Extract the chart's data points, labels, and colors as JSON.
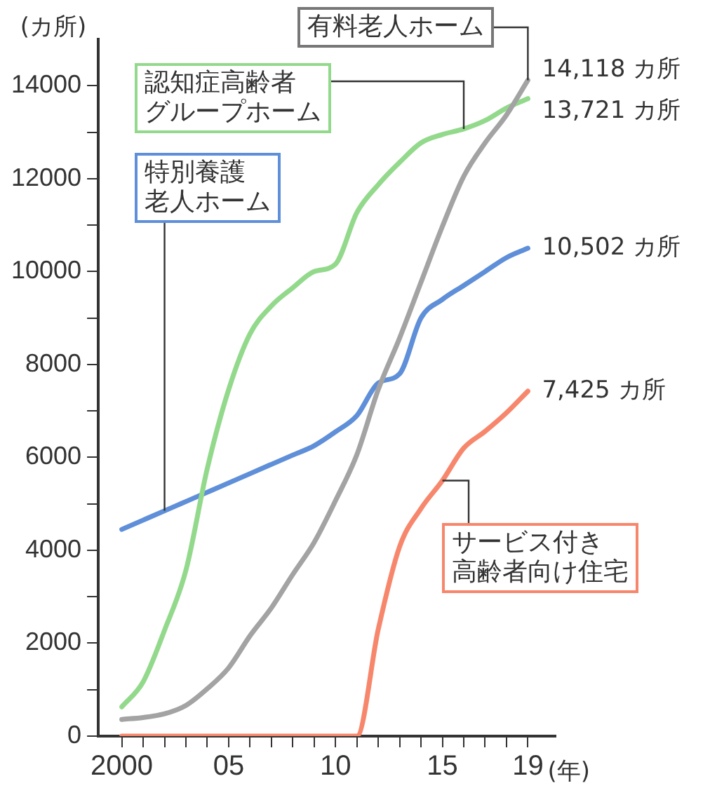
{
  "chart_data": {
    "type": "line",
    "ylabel": "(カ所)",
    "xlabel": "(年)",
    "x": [
      2000,
      2001,
      2002,
      2003,
      2004,
      2005,
      2006,
      2007,
      2008,
      2009,
      2010,
      2011,
      2012,
      2013,
      2014,
      2015,
      2016,
      2017,
      2018,
      2019
    ],
    "xlim": [
      1998.9,
      2020.3
    ],
    "xticks": [
      {
        "value": 2000,
        "label": "2000"
      },
      {
        "value": 2001,
        "label": null
      },
      {
        "value": 2002,
        "label": null
      },
      {
        "value": 2003,
        "label": null
      },
      {
        "value": 2004,
        "label": null
      },
      {
        "value": 2005,
        "label": "05"
      },
      {
        "value": 2006,
        "label": null
      },
      {
        "value": 2007,
        "label": null
      },
      {
        "value": 2008,
        "label": null
      },
      {
        "value": 2009,
        "label": null
      },
      {
        "value": 2010,
        "label": "10"
      },
      {
        "value": 2011,
        "label": null
      },
      {
        "value": 2012,
        "label": null
      },
      {
        "value": 2013,
        "label": null
      },
      {
        "value": 2014,
        "label": null
      },
      {
        "value": 2015,
        "label": "15"
      },
      {
        "value": 2016,
        "label": null
      },
      {
        "value": 2017,
        "label": null
      },
      {
        "value": 2018,
        "label": null
      },
      {
        "value": 2019,
        "label": "19"
      }
    ],
    "ylim": [
      0,
      15000
    ],
    "yticks": [
      0,
      {
        "value": 1000,
        "label": null
      },
      2000,
      {
        "value": 3000,
        "label": null
      },
      4000,
      {
        "value": 5000,
        "label": null
      },
      6000,
      {
        "value": 7000,
        "label": null
      },
      8000,
      {
        "value": 9000,
        "label": null
      },
      10000,
      {
        "value": 11000,
        "label": null
      },
      12000,
      {
        "value": 13000,
        "label": null
      },
      14000
    ],
    "grid": false,
    "legend": false,
    "marker": "none",
    "line_style": "solid",
    "series": [
      {
        "name": "有料老人ホーム",
        "color": "#a3a3a3",
        "values": [
          360,
          400,
          480,
          660,
          1020,
          1470,
          2160,
          2760,
          3480,
          4170,
          5070,
          6060,
          7460,
          8570,
          9770,
          10970,
          12050,
          12770,
          13370,
          14118
        ],
        "value_labels": [
          null,
          null,
          null,
          null,
          null,
          null,
          null,
          null,
          null,
          null,
          null,
          null,
          null,
          null,
          null,
          null,
          null,
          null,
          null,
          "14,118 カ所"
        ]
      },
      {
        "name": "認知症高齢者グループホーム",
        "color": "#93d98c",
        "values": [
          630,
          1170,
          2280,
          3570,
          5760,
          7460,
          8660,
          9260,
          9650,
          10000,
          10160,
          11270,
          11870,
          12350,
          12770,
          12950,
          13070,
          13250,
          13520,
          13721
        ],
        "value_labels": [
          null,
          null,
          null,
          null,
          null,
          null,
          null,
          null,
          null,
          null,
          null,
          null,
          null,
          null,
          null,
          null,
          null,
          null,
          null,
          "13,721 カ所"
        ]
      },
      {
        "name": "特別養護老人ホーム",
        "color": "#5f8fd8",
        "values": [
          4450,
          4650,
          4850,
          5050,
          5250,
          5450,
          5650,
          5850,
          6050,
          6250,
          6550,
          6900,
          7600,
          7800,
          9000,
          9400,
          9700,
          10000,
          10300,
          10502
        ],
        "value_labels": [
          null,
          null,
          null,
          null,
          null,
          null,
          null,
          null,
          null,
          null,
          null,
          null,
          null,
          null,
          null,
          null,
          null,
          null,
          null,
          "10,502 カ所"
        ]
      },
      {
        "name": "サービス付き高齢者向け住宅",
        "color": "#f7876c",
        "values": [
          0,
          0,
          0,
          0,
          0,
          0,
          0,
          0,
          0,
          0,
          0,
          0,
          2300,
          4080,
          4900,
          5500,
          6200,
          6560,
          6960,
          7425
        ],
        "value_labels": [
          null,
          null,
          null,
          null,
          null,
          null,
          null,
          null,
          null,
          null,
          null,
          null,
          null,
          null,
          null,
          null,
          null,
          null,
          null,
          "7,425 カ所"
        ]
      }
    ]
  }
}
